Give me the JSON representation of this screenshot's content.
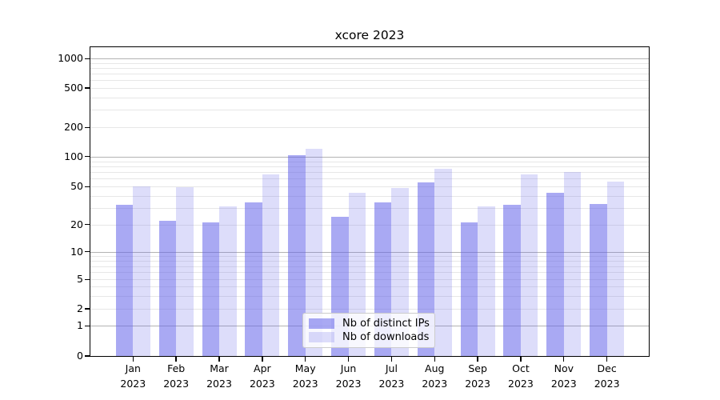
{
  "title": "xcore 2023",
  "chart_data": {
    "type": "bar",
    "title": "xcore 2023",
    "categories": [
      "Jan 2023",
      "Feb 2023",
      "Mar 2023",
      "Apr 2023",
      "May 2023",
      "Jun 2023",
      "Jul 2023",
      "Aug 2023",
      "Sep 2023",
      "Oct 2023",
      "Nov 2023",
      "Dec 2023"
    ],
    "x_axis": {
      "months": [
        "Jan",
        "Feb",
        "Mar",
        "Apr",
        "May",
        "Jun",
        "Jul",
        "Aug",
        "Sep",
        "Oct",
        "Nov",
        "Dec"
      ],
      "year": "2023"
    },
    "series": [
      {
        "name": "Nb of distinct IPs",
        "color": "rgba(99,99,233,0.55)",
        "values": [
          32,
          22,
          21,
          34,
          104,
          24,
          34,
          55,
          21,
          32,
          43,
          33
        ]
      },
      {
        "name": "Nb of downloads",
        "color": "rgba(99,99,233,0.22)",
        "values": [
          50,
          49,
          31,
          66,
          120,
          43,
          48,
          76,
          31,
          66,
          70,
          56
        ]
      }
    ],
    "y_axis": {
      "scale": "symlog",
      "ticks": [
        0,
        1,
        2,
        5,
        10,
        20,
        50,
        100,
        200,
        500,
        1000
      ],
      "major_gridlines": [
        1,
        10,
        100,
        1000
      ],
      "ylim": [
        0,
        1300
      ]
    },
    "grid": true,
    "legend": {
      "entries": [
        "Nb of distinct IPs",
        "Nb of downloads"
      ],
      "position": "lower-center"
    }
  }
}
